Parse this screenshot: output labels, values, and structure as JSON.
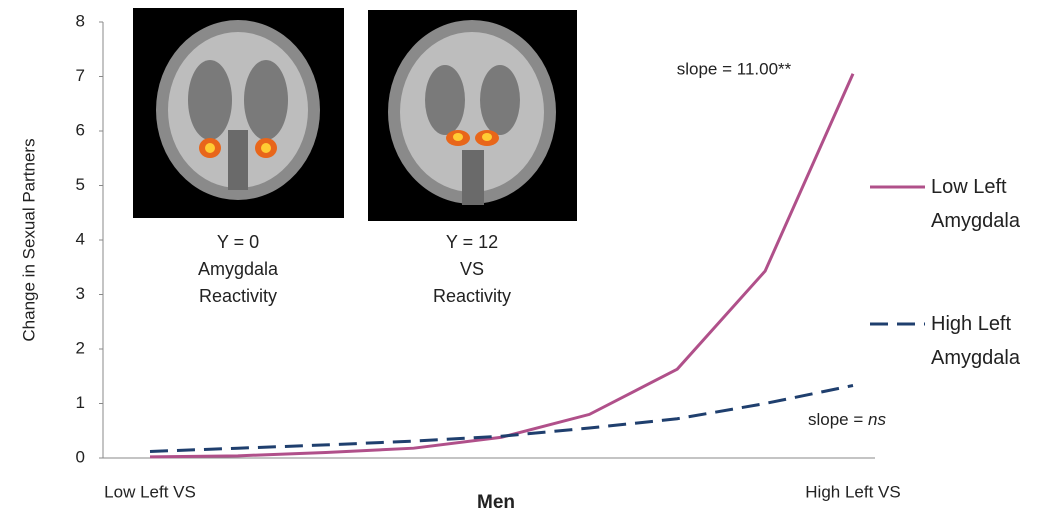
{
  "chart_data": {
    "type": "line",
    "categories": [
      "Low Left VS",
      null,
      null,
      null,
      null,
      null,
      null,
      null,
      "High Left VS"
    ],
    "series": [
      {
        "name": "Low Left Amygdala",
        "color": "#b0508a",
        "dash": false,
        "values": [
          0.02,
          0.04,
          0.1,
          0.18,
          0.38,
          0.8,
          1.63,
          3.43,
          7.05
        ]
      },
      {
        "name": "High Left Amygdala",
        "color": "#1f3f6e",
        "dash": true,
        "values": [
          0.12,
          0.18,
          0.24,
          0.31,
          0.4,
          0.55,
          0.72,
          1.0,
          1.33
        ]
      }
    ],
    "ylim": [
      0,
      8
    ],
    "yticks": [
      0,
      1,
      2,
      3,
      4,
      5,
      6,
      7,
      8
    ],
    "ylabel": "Change in Sexual Partners",
    "xlabel": "Men",
    "annotations": [
      {
        "text": "slope = 11.00**"
      },
      {
        "text": "slope = ",
        "emphasis": "ns"
      }
    ],
    "legend": "right"
  },
  "insets": [
    {
      "caption": [
        "Y = 0",
        "Amygdala",
        "Reactivity"
      ]
    },
    {
      "caption": [
        "Y = 12",
        "VS",
        "Reactivity"
      ]
    }
  ]
}
